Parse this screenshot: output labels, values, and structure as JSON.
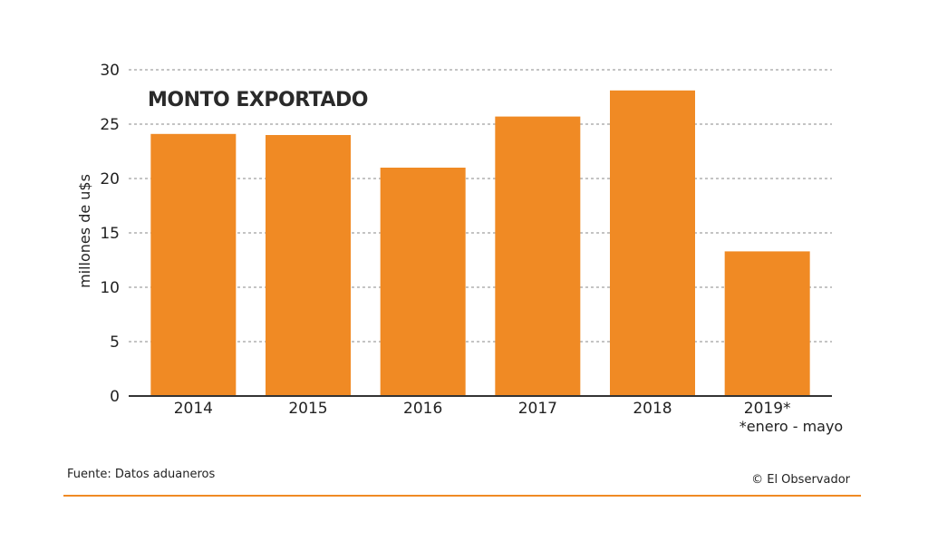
{
  "chart_data": {
    "type": "bar",
    "title": "MONTO EXPORTADO",
    "ylabel": "millones de u$s",
    "xlabel": "",
    "categories": [
      "2014",
      "2015",
      "2016",
      "2017",
      "2018",
      "2019*"
    ],
    "values": [
      24.1,
      24.0,
      21.0,
      25.7,
      28.1,
      13.3
    ],
    "yticks": [
      "0",
      "5",
      "10",
      "15",
      "20",
      "25",
      "30"
    ],
    "ylim": [
      0,
      30
    ],
    "grid": true,
    "annotation": "*enero - mayo",
    "bar_color": "#f08a24"
  },
  "footer": {
    "source": "Fuente: Datos aduaneros",
    "credit": "© El Observador"
  },
  "colors": {
    "accent": "#f08a24",
    "grid": "#8a8a8a",
    "axis": "#333333"
  }
}
